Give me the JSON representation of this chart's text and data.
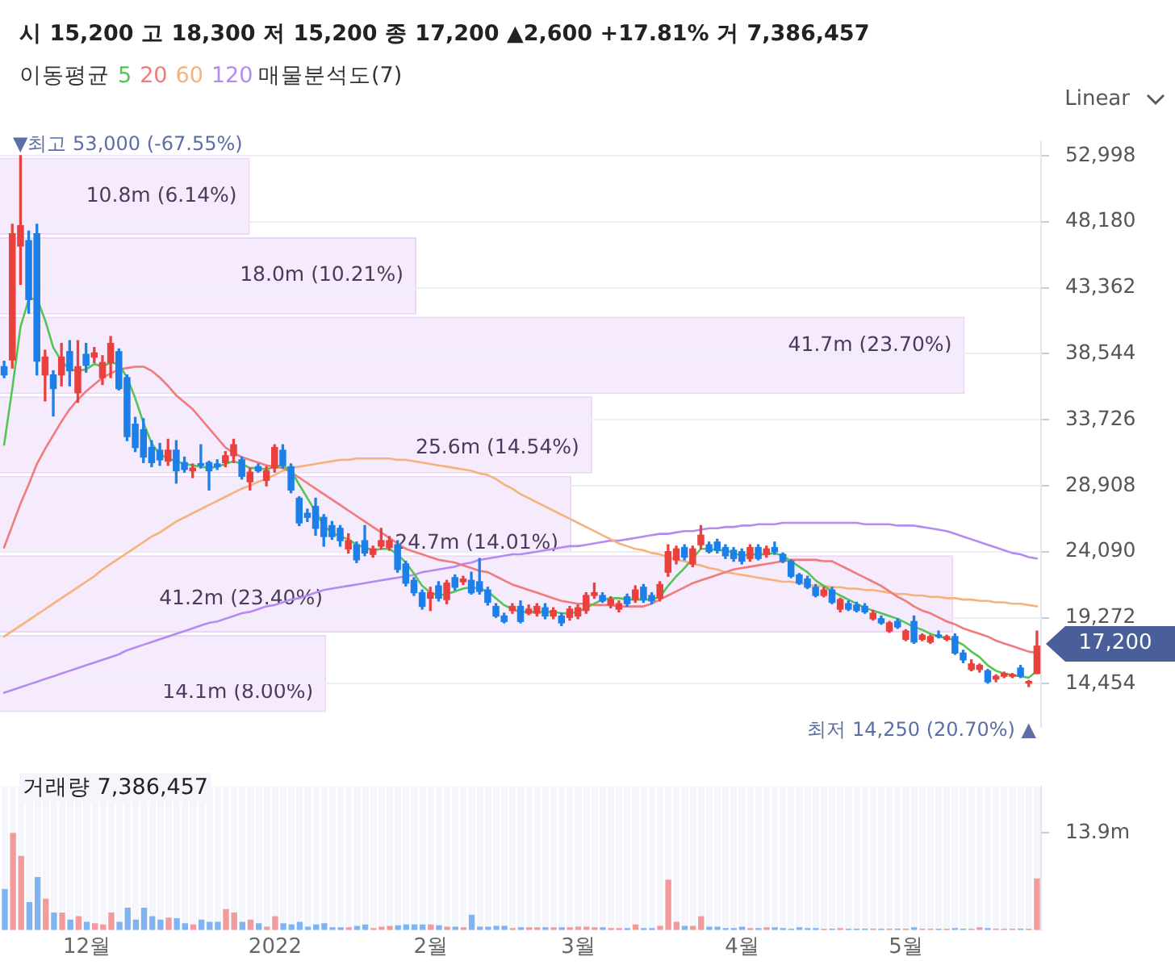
{
  "chart_data": [
    {
      "type": "bar",
      "orientation": "horizontal",
      "title": "매물분석도(7)",
      "tick_labels": false,
      "color": "#f6eafd",
      "categories": [
        null,
        null,
        null,
        null,
        null,
        null,
        null
      ],
      "values": [
        10800000,
        18000000,
        41700000,
        25600000,
        24700000,
        41200000,
        14100000
      ],
      "value_labels": [
        "10.8m (6.14%)",
        "18.0m (10.21%)",
        "41.7m (23.70%)",
        "25.6m (14.54%)",
        "24.7m (14.01%)",
        "41.2m (23.40%)",
        "14.1m (8.00%)"
      ]
    },
    {
      "type": "candlestick",
      "title": "시 15,200 고 18,300 저 15,200 종 17,200 ▲2,600 +17.81% 거 7,386,457",
      "legend": "top left",
      "legend_title": "이동평균",
      "grid": "y",
      "tick_labels": "y",
      "marker": "none",
      "categories": [
        null,
        null,
        null,
        null,
        null,
        null,
        null,
        null,
        null,
        null,
        null,
        null,
        null,
        null,
        null,
        null,
        null,
        null,
        null,
        null,
        null,
        null,
        null,
        null,
        null,
        null,
        null,
        null,
        null,
        null,
        null,
        null,
        null,
        null,
        null,
        null,
        null,
        null,
        null,
        null,
        null,
        null,
        null,
        null,
        null,
        null,
        null,
        null,
        null,
        null,
        null,
        null,
        null,
        null,
        null,
        null,
        null,
        null,
        null,
        null,
        null,
        null,
        null,
        null,
        null,
        null,
        null,
        null,
        null,
        null,
        null,
        null,
        null,
        null,
        null,
        null,
        null,
        null,
        null,
        null,
        null,
        null,
        null,
        null,
        null,
        null,
        null,
        null,
        null,
        null,
        null,
        null,
        null,
        null,
        null,
        null,
        null,
        null,
        null,
        null,
        null,
        null,
        null,
        null,
        null,
        null,
        null,
        null,
        null,
        null,
        null,
        null,
        null,
        null,
        null,
        null,
        null,
        null,
        null,
        null,
        null,
        null,
        null,
        null,
        null,
        null,
        null
      ],
      "ohlc": [
        [
          37600,
          38000,
          36800,
          37000
        ],
        [
          38100,
          48000,
          37500,
          47300
        ],
        [
          46400,
          53000,
          43600,
          47900
        ],
        [
          46800,
          47500,
          41500,
          42500
        ],
        [
          47300,
          48000,
          37000,
          38000
        ],
        [
          37000,
          38800,
          35100,
          38300
        ],
        [
          37000,
          37300,
          34000,
          36000
        ],
        [
          37000,
          39300,
          36200,
          38300
        ],
        [
          38700,
          39500,
          36200,
          37300
        ],
        [
          35700,
          39500,
          35000,
          37600
        ],
        [
          38500,
          39300,
          37200,
          37700
        ],
        [
          38300,
          39000,
          37900,
          38600
        ],
        [
          36800,
          38400,
          36300,
          37900
        ],
        [
          37900,
          39800,
          36800,
          39300
        ],
        [
          38700,
          38900,
          35900,
          36000
        ],
        [
          36800,
          37000,
          32200,
          32500
        ],
        [
          33400,
          33900,
          31400,
          31700
        ],
        [
          33000,
          33800,
          30600,
          31000
        ],
        [
          31700,
          32200,
          30300,
          30600
        ],
        [
          31500,
          32000,
          30400,
          30800
        ],
        [
          30700,
          32300,
          30400,
          31500
        ],
        [
          31500,
          32200,
          29100,
          30000
        ],
        [
          30600,
          31000,
          29900,
          30100
        ],
        [
          30000,
          30500,
          29500,
          30200
        ],
        [
          30500,
          31900,
          30200,
          30400
        ],
        [
          30600,
          30700,
          28600,
          30000
        ],
        [
          30500,
          30800,
          30100,
          30300
        ],
        [
          30600,
          31400,
          30300,
          31100
        ],
        [
          31100,
          32300,
          30600,
          31900
        ],
        [
          30800,
          31000,
          29400,
          29600
        ],
        [
          29200,
          30200,
          28600,
          29900
        ],
        [
          30300,
          30500,
          29900,
          30000
        ],
        [
          29300,
          30300,
          28900,
          30000
        ],
        [
          30200,
          31900,
          29900,
          31700
        ],
        [
          31500,
          31900,
          30200,
          30400
        ],
        [
          30300,
          30500,
          28400,
          28600
        ],
        [
          28000,
          28100,
          26000,
          26200
        ],
        [
          26900,
          27200,
          26300,
          26600
        ],
        [
          27400,
          28000,
          25300,
          25800
        ],
        [
          26600,
          26800,
          24500,
          25200
        ],
        [
          26000,
          26300,
          25000,
          25200
        ],
        [
          25800,
          26000,
          24500,
          24900
        ],
        [
          24300,
          25400,
          24000,
          24900
        ],
        [
          24600,
          24800,
          23300,
          23500
        ],
        [
          24900,
          26000,
          23800,
          24000
        ],
        [
          23900,
          24500,
          23700,
          24300
        ],
        [
          24500,
          25800,
          24300,
          24900
        ],
        [
          24400,
          25200,
          24200,
          24900
        ],
        [
          24600,
          24900,
          22600,
          22800
        ],
        [
          23200,
          23400,
          21600,
          21800
        ],
        [
          22000,
          22200,
          20900,
          21100
        ],
        [
          21100,
          21300,
          19900,
          20100
        ],
        [
          20700,
          21500,
          19800,
          21100
        ],
        [
          21600,
          21900,
          20500,
          20700
        ],
        [
          20600,
          22000,
          20300,
          21800
        ],
        [
          22200,
          22400,
          21300,
          21500
        ],
        [
          21900,
          22300,
          21700,
          22100
        ],
        [
          22000,
          22600,
          21000,
          21100
        ],
        [
          21900,
          23600,
          21000,
          21200
        ],
        [
          21300,
          21500,
          20200,
          20400
        ],
        [
          20100,
          20300,
          19300,
          19400
        ],
        [
          19400,
          19600,
          18900,
          19000
        ],
        [
          19800,
          20300,
          19600,
          20100
        ],
        [
          20100,
          20500,
          18900,
          19000
        ],
        [
          19600,
          20200,
          19500,
          19900
        ],
        [
          19600,
          20300,
          19400,
          20100
        ],
        [
          20000,
          20300,
          19200,
          19400
        ],
        [
          19400,
          20000,
          19200,
          19800
        ],
        [
          19400,
          19600,
          18700,
          18900
        ],
        [
          19300,
          20100,
          19100,
          19900
        ],
        [
          19400,
          20200,
          19200,
          20000
        ],
        [
          19800,
          21100,
          19600,
          20900
        ],
        [
          20900,
          21800,
          20700,
          21100
        ],
        [
          20900,
          21100,
          20400,
          20500
        ],
        [
          20200,
          20800,
          20000,
          20600
        ],
        [
          19900,
          20500,
          19700,
          20300
        ],
        [
          20800,
          21000,
          20100,
          20300
        ],
        [
          20600,
          21600,
          20400,
          21300
        ],
        [
          21500,
          21700,
          20400,
          20600
        ],
        [
          20900,
          21100,
          20300,
          20500
        ],
        [
          20700,
          21900,
          20500,
          21700
        ],
        [
          22600,
          24600,
          22300,
          24100
        ],
        [
          23500,
          24500,
          23200,
          24300
        ],
        [
          24400,
          24600,
          23500,
          23700
        ],
        [
          23200,
          24500,
          23000,
          24300
        ],
        [
          24600,
          26000,
          24300,
          25300
        ],
        [
          24600,
          24800,
          24000,
          24100
        ],
        [
          24800,
          25000,
          24000,
          24200
        ],
        [
          24400,
          24600,
          23600,
          23800
        ],
        [
          24200,
          24400,
          23400,
          23600
        ],
        [
          24100,
          24300,
          23200,
          23400
        ],
        [
          23600,
          24600,
          23400,
          24400
        ],
        [
          24400,
          24600,
          23500,
          23600
        ],
        [
          23900,
          24500,
          23700,
          24300
        ],
        [
          24400,
          24800,
          23900,
          24100
        ],
        [
          23900,
          24000,
          23300,
          23400
        ],
        [
          23400,
          23500,
          22200,
          22300
        ],
        [
          22400,
          22500,
          21700,
          21800
        ],
        [
          22100,
          22300,
          21400,
          21500
        ],
        [
          21500,
          21700,
          20800,
          20900
        ],
        [
          20900,
          21500,
          20800,
          21300
        ],
        [
          21300,
          21500,
          20300,
          20400
        ],
        [
          19900,
          20700,
          19700,
          20600
        ],
        [
          20300,
          20500,
          19800,
          19900
        ],
        [
          20200,
          20400,
          19700,
          19800
        ],
        [
          20100,
          20300,
          19600,
          19700
        ],
        [
          19200,
          19800,
          19100,
          19600
        ],
        [
          19200,
          19400,
          18800,
          18900
        ],
        [
          18300,
          19000,
          18200,
          18900
        ],
        [
          19000,
          19200,
          18500,
          18600
        ],
        [
          17700,
          18400,
          17600,
          18300
        ],
        [
          19000,
          19400,
          17400,
          17500
        ],
        [
          17700,
          18100,
          17600,
          18000
        ],
        [
          17500,
          18000,
          17400,
          17900
        ],
        [
          18000,
          18300,
          17800,
          17900
        ],
        [
          17700,
          18000,
          17600,
          17900
        ],
        [
          17900,
          18100,
          16600,
          16700
        ],
        [
          16700,
          16900,
          16000,
          16200
        ],
        [
          15500,
          16200,
          15400,
          15900
        ],
        [
          15500,
          15900,
          15300,
          15800
        ],
        [
          15400,
          15500,
          14500,
          14600
        ],
        [
          14800,
          15100,
          14600,
          15000
        ],
        [
          15000,
          15300,
          14900,
          15200
        ],
        [
          15000,
          15200,
          14900,
          15100
        ],
        [
          15600,
          15800,
          14900,
          15000
        ],
        [
          14500,
          14700,
          14250,
          14600
        ],
        [
          15200,
          18300,
          15200,
          17200
        ]
      ],
      "colors": [
        "#1d7fe8",
        "#e8413e",
        "#e8413e",
        "#1d7fe8",
        "#1d7fe8",
        "#e8413e",
        "#1d7fe8",
        "#e8413e",
        "#1d7fe8",
        "#e8413e",
        "#1d7fe8",
        "#e8413e",
        "#e8413e",
        "#e8413e",
        "#1d7fe8",
        "#1d7fe8",
        "#1d7fe8",
        "#1d7fe8",
        "#1d7fe8",
        "#1d7fe8",
        "#e8413e",
        "#1d7fe8",
        "#1d7fe8",
        "#e8413e",
        "#1d7fe8",
        "#1d7fe8",
        "#1d7fe8",
        "#e8413e",
        "#e8413e",
        "#1d7fe8",
        "#e8413e",
        "#1d7fe8",
        "#e8413e",
        "#e8413e",
        "#1d7fe8",
        "#1d7fe8",
        "#1d7fe8",
        "#1d7fe8",
        "#1d7fe8",
        "#1d7fe8",
        "#1d7fe8",
        "#1d7fe8",
        "#e8413e",
        "#1d7fe8",
        "#1d7fe8",
        "#e8413e",
        "#e8413e",
        "#e8413e",
        "#1d7fe8",
        "#1d7fe8",
        "#1d7fe8",
        "#1d7fe8",
        "#e8413e",
        "#1d7fe8",
        "#e8413e",
        "#1d7fe8",
        "#e8413e",
        "#1d7fe8",
        "#1d7fe8",
        "#1d7fe8",
        "#1d7fe8",
        "#1d7fe8",
        "#e8413e",
        "#1d7fe8",
        "#e8413e",
        "#e8413e",
        "#1d7fe8",
        "#e8413e",
        "#1d7fe8",
        "#e8413e",
        "#e8413e",
        "#e8413e",
        "#e8413e",
        "#1d7fe8",
        "#e8413e",
        "#e8413e",
        "#1d7fe8",
        "#e8413e",
        "#1d7fe8",
        "#1d7fe8",
        "#e8413e",
        "#e8413e",
        "#e8413e",
        "#1d7fe8",
        "#e8413e",
        "#e8413e",
        "#1d7fe8",
        "#1d7fe8",
        "#1d7fe8",
        "#1d7fe8",
        "#1d7fe8",
        "#e8413e",
        "#1d7fe8",
        "#e8413e",
        "#1d7fe8",
        "#1d7fe8",
        "#1d7fe8",
        "#1d7fe8",
        "#1d7fe8",
        "#1d7fe8",
        "#e8413e",
        "#1d7fe8",
        "#e8413e",
        "#1d7fe8",
        "#1d7fe8",
        "#1d7fe8",
        "#e8413e",
        "#1d7fe8",
        "#e8413e",
        "#1d7fe8",
        "#e8413e",
        "#1d7fe8",
        "#e8413e",
        "#e8413e",
        "#1d7fe8",
        "#e8413e",
        "#1d7fe8",
        "#1d7fe8",
        "#e8413e",
        "#e8413e",
        "#1d7fe8",
        "#e8413e",
        "#e8413e",
        "#e8413e",
        "#1d7fe8",
        "#e8413e",
        "#e8413e"
      ],
      "series": [
        {
          "type": "line",
          "name": "5",
          "color": "#55c455",
          "values": [
            31900,
            36000,
            40500,
            42500,
            42600,
            41000,
            39000,
            38000,
            37400,
            37300,
            37400,
            37800,
            37600,
            37900,
            37800,
            36800,
            35300,
            33500,
            32000,
            31200,
            30900,
            30700,
            30500,
            30400,
            30300,
            30200,
            30300,
            30500,
            30700,
            30500,
            30200,
            30200,
            30100,
            30300,
            30400,
            30000,
            29000,
            28000,
            27000,
            26000,
            25500,
            25200,
            25000,
            24600,
            24400,
            24200,
            24300,
            24300,
            23900,
            23300,
            22500,
            21600,
            21100,
            20900,
            21000,
            21200,
            21400,
            21500,
            21400,
            21200,
            20700,
            20200,
            19900,
            19700,
            19700,
            19700,
            19700,
            19700,
            19600,
            19600,
            19700,
            20000,
            20300,
            20600,
            20700,
            20700,
            20600,
            20600,
            20600,
            20600,
            20800,
            21600,
            22300,
            22900,
            23600,
            24300,
            24300,
            24200,
            24200,
            24000,
            23800,
            23900,
            23900,
            23900,
            24000,
            23800,
            23400,
            23000,
            22600,
            22000,
            21600,
            21200,
            20900,
            20600,
            20300,
            20000,
            19800,
            19600,
            19400,
            19200,
            18900,
            18600,
            18400,
            18100,
            17900,
            17800,
            17600,
            17300,
            16800,
            16400,
            15800,
            15400,
            15200,
            15100,
            15000,
            14900,
            15400
          ]
        },
        {
          "type": "line",
          "name": "20",
          "color": "#f07b7b",
          "values": [
            24400,
            26000,
            27600,
            29000,
            30500,
            31600,
            32600,
            33600,
            34500,
            35200,
            35800,
            36300,
            36800,
            37100,
            37400,
            37500,
            37600,
            37600,
            37300,
            36800,
            36200,
            35500,
            35000,
            34500,
            33800,
            33100,
            32400,
            31700,
            31300,
            31000,
            30800,
            30600,
            30400,
            30300,
            30200,
            29900,
            29500,
            29100,
            28700,
            28300,
            27900,
            27500,
            27100,
            26700,
            26300,
            25900,
            25500,
            25100,
            24700,
            24300,
            24100,
            23900,
            23700,
            23500,
            23400,
            23300,
            23100,
            22900,
            22700,
            22600,
            22300,
            22000,
            21700,
            21500,
            21300,
            21100,
            20900,
            20700,
            20500,
            20400,
            20300,
            20300,
            20200,
            20200,
            20200,
            20100,
            20100,
            20100,
            20100,
            20300,
            20600,
            20900,
            21200,
            21500,
            21800,
            22000,
            22200,
            22400,
            22600,
            22800,
            22900,
            23000,
            23100,
            23200,
            23300,
            23400,
            23500,
            23500,
            23500,
            23500,
            23400,
            23400,
            23100,
            22800,
            22500,
            22200,
            21900,
            21600,
            21200,
            20800,
            20500,
            20100,
            19800,
            19600,
            19300,
            19000,
            18800,
            18500,
            18300,
            18100,
            17900,
            17600,
            17400,
            17200,
            17000,
            16800,
            16700
          ]
        },
        {
          "type": "line",
          "name": "60",
          "color": "#f5b27a",
          "values": [
            17900,
            18300,
            18700,
            19100,
            19500,
            19900,
            20300,
            20700,
            21100,
            21500,
            21900,
            22300,
            22800,
            23200,
            23600,
            24000,
            24400,
            24800,
            25200,
            25500,
            25900,
            26300,
            26600,
            26900,
            27200,
            27500,
            27800,
            28100,
            28400,
            28700,
            28900,
            29200,
            29400,
            29700,
            30000,
            30200,
            30300,
            30400,
            30500,
            30600,
            30700,
            30800,
            30800,
            30900,
            30900,
            30900,
            30900,
            30900,
            30800,
            30800,
            30700,
            30600,
            30500,
            30400,
            30300,
            30200,
            30100,
            30000,
            29800,
            29700,
            29400,
            29000,
            28700,
            28300,
            28000,
            27700,
            27400,
            27100,
            26800,
            26500,
            26200,
            25900,
            25600,
            25300,
            25000,
            24700,
            24500,
            24300,
            24200,
            24000,
            23900,
            23700,
            23500,
            23400,
            23200,
            23100,
            22900,
            22800,
            22600,
            22500,
            22400,
            22300,
            22200,
            22100,
            22000,
            21900,
            21900,
            21800,
            21700,
            21600,
            21600,
            21500,
            21500,
            21400,
            21400,
            21300,
            21300,
            21200,
            21100,
            21000,
            21000,
            20900,
            20900,
            20800,
            20800,
            20700,
            20700,
            20600,
            20600,
            20500,
            20500,
            20400,
            20400,
            20300,
            20300,
            20200,
            20100
          ]
        },
        {
          "type": "line",
          "name": "120",
          "color": "#b48cf0",
          "values": [
            13800,
            14000,
            14200,
            14400,
            14600,
            14800,
            15000,
            15200,
            15400,
            15600,
            15800,
            16000,
            16200,
            16400,
            16600,
            16900,
            17100,
            17300,
            17500,
            17700,
            17900,
            18100,
            18300,
            18500,
            18700,
            18900,
            19000,
            19200,
            19400,
            19600,
            19700,
            19900,
            20100,
            20200,
            20400,
            20600,
            20700,
            20900,
            21100,
            21300,
            21400,
            21500,
            21600,
            21700,
            21800,
            21900,
            22000,
            22100,
            22200,
            22300,
            22400,
            22600,
            22700,
            22800,
            22900,
            23000,
            23200,
            23300,
            23500,
            23600,
            23700,
            23800,
            23900,
            23900,
            24000,
            24100,
            24200,
            24300,
            24400,
            24500,
            24500,
            24600,
            24700,
            24800,
            24900,
            24900,
            25000,
            25100,
            25200,
            25300,
            25400,
            25400,
            25500,
            25600,
            25600,
            25700,
            25800,
            25800,
            25900,
            25900,
            26000,
            26000,
            26100,
            26100,
            26100,
            26200,
            26200,
            26200,
            26200,
            26200,
            26200,
            26200,
            26200,
            26200,
            26200,
            26100,
            26100,
            26100,
            26100,
            26000,
            26000,
            26000,
            25900,
            25800,
            25700,
            25600,
            25400,
            25200,
            25000,
            24800,
            24600,
            24400,
            24200,
            24000,
            23900,
            23700,
            23600
          ]
        }
      ],
      "ylim": [
        11300,
        54000
      ],
      "yticks": [
        {
          "value": 14454,
          "label": "14,454"
        },
        {
          "value": 19272,
          "label": "19,272"
        },
        {
          "value": 24090,
          "label": "24,090"
        },
        {
          "value": 28908,
          "label": "28,908"
        },
        {
          "value": 33726,
          "label": "33,726"
        },
        {
          "value": 38544,
          "label": "38,544"
        },
        {
          "value": 43362,
          "label": "43,362"
        },
        {
          "value": 48180,
          "label": "48,180"
        },
        {
          "value": 52998,
          "label": "52,998"
        }
      ],
      "annotations": [
        "Linear",
        "▼최고 53,000 (-67.55%)",
        "최저 14,250 (20.70%) ▲",
        "17,200"
      ]
    },
    {
      "type": "bar",
      "title": "거래량 7,386,457",
      "grid": "x",
      "categories": [
        null,
        null,
        null,
        null,
        null,
        null,
        null,
        null,
        null,
        null,
        "12월",
        null,
        null,
        null,
        null,
        null,
        null,
        null,
        null,
        null,
        null,
        null,
        null,
        null,
        null,
        null,
        null,
        null,
        null,
        null,
        null,
        null,
        null,
        "2022",
        null,
        null,
        null,
        null,
        null,
        null,
        null,
        null,
        null,
        null,
        null,
        null,
        null,
        null,
        null,
        null,
        null,
        null,
        "2월",
        null,
        null,
        null,
        null,
        null,
        null,
        null,
        null,
        null,
        null,
        null,
        null,
        null,
        null,
        null,
        null,
        null,
        "3월",
        null,
        null,
        null,
        null,
        null,
        null,
        null,
        null,
        null,
        null,
        null,
        null,
        null,
        null,
        null,
        null,
        null,
        null,
        null,
        "4월",
        null,
        null,
        null,
        null,
        null,
        null,
        null,
        null,
        null,
        null,
        null,
        null,
        null,
        null,
        null,
        null,
        null,
        null,
        null,
        "5월",
        null,
        null,
        null,
        null,
        null,
        null,
        null,
        null,
        null,
        null,
        null,
        null,
        null,
        null,
        null,
        null
      ],
      "values": [
        5900000,
        13900000,
        10600000,
        4000000,
        7600000,
        4500000,
        2500000,
        2500000,
        1500000,
        2000000,
        1200000,
        1000000,
        800000,
        2500000,
        1200000,
        3200000,
        1500000,
        3200000,
        2000000,
        1500000,
        1800000,
        1700000,
        1000000,
        800000,
        1500000,
        1200000,
        1200000,
        3000000,
        2500000,
        1200000,
        1500000,
        1000000,
        500000,
        2000000,
        1000000,
        800000,
        1200000,
        500000,
        800000,
        1000000,
        400000,
        400000,
        400000,
        600000,
        800000,
        300000,
        500000,
        600000,
        700000,
        800000,
        800000,
        800000,
        800000,
        700000,
        500000,
        500000,
        400000,
        2200000,
        500000,
        500000,
        600000,
        600000,
        300000,
        400000,
        400000,
        400000,
        400000,
        400000,
        400000,
        400000,
        500000,
        500000,
        400000,
        400000,
        300000,
        300000,
        300000,
        800000,
        300000,
        300000,
        600000,
        7200000,
        1200000,
        600000,
        600000,
        2000000,
        500000,
        500000,
        300000,
        300000,
        500000,
        300000,
        300000,
        400000,
        400000,
        300000,
        200000,
        400000,
        300000,
        300000,
        200000,
        200000,
        300000,
        200000,
        200000,
        200000,
        200000,
        200000,
        200000,
        200000,
        200000,
        400000,
        200000,
        200000,
        200000,
        200000,
        300000,
        200000,
        200000,
        400000,
        300000,
        200000,
        200000,
        200000,
        200000,
        200000,
        7386457
      ],
      "colors": [
        "#7fb3f2",
        "#f39a9c",
        "#f39a9c",
        "#7fb3f2",
        "#7fb3f2",
        "#f39a9c",
        "#7fb3f2",
        "#f39a9c",
        "#7fb3f2",
        "#f39a9c",
        "#7fb3f2",
        "#f39a9c",
        "#f39a9c",
        "#f39a9c",
        "#7fb3f2",
        "#7fb3f2",
        "#7fb3f2",
        "#7fb3f2",
        "#7fb3f2",
        "#7fb3f2",
        "#f39a9c",
        "#7fb3f2",
        "#7fb3f2",
        "#f39a9c",
        "#7fb3f2",
        "#7fb3f2",
        "#7fb3f2",
        "#f39a9c",
        "#f39a9c",
        "#7fb3f2",
        "#f39a9c",
        "#7fb3f2",
        "#f39a9c",
        "#f39a9c",
        "#7fb3f2",
        "#7fb3f2",
        "#7fb3f2",
        "#7fb3f2",
        "#7fb3f2",
        "#7fb3f2",
        "#7fb3f2",
        "#7fb3f2",
        "#f39a9c",
        "#7fb3f2",
        "#7fb3f2",
        "#f39a9c",
        "#f39a9c",
        "#f39a9c",
        "#7fb3f2",
        "#7fb3f2",
        "#7fb3f2",
        "#7fb3f2",
        "#f39a9c",
        "#7fb3f2",
        "#f39a9c",
        "#7fb3f2",
        "#f39a9c",
        "#7fb3f2",
        "#7fb3f2",
        "#7fb3f2",
        "#7fb3f2",
        "#7fb3f2",
        "#f39a9c",
        "#7fb3f2",
        "#f39a9c",
        "#f39a9c",
        "#7fb3f2",
        "#f39a9c",
        "#7fb3f2",
        "#f39a9c",
        "#f39a9c",
        "#f39a9c",
        "#f39a9c",
        "#7fb3f2",
        "#f39a9c",
        "#f39a9c",
        "#7fb3f2",
        "#f39a9c",
        "#7fb3f2",
        "#7fb3f2",
        "#f39a9c",
        "#f39a9c",
        "#f39a9c",
        "#7fb3f2",
        "#f39a9c",
        "#f39a9c",
        "#7fb3f2",
        "#7fb3f2",
        "#7fb3f2",
        "#7fb3f2",
        "#7fb3f2",
        "#f39a9c",
        "#7fb3f2",
        "#f39a9c",
        "#7fb3f2",
        "#7fb3f2",
        "#7fb3f2",
        "#7fb3f2",
        "#7fb3f2",
        "#7fb3f2",
        "#f39a9c",
        "#7fb3f2",
        "#f39a9c",
        "#7fb3f2",
        "#7fb3f2",
        "#7fb3f2",
        "#f39a9c",
        "#7fb3f2",
        "#f39a9c",
        "#7fb3f2",
        "#f39a9c",
        "#7fb3f2",
        "#f39a9c",
        "#f39a9c",
        "#7fb3f2",
        "#f39a9c",
        "#7fb3f2",
        "#7fb3f2",
        "#f39a9c",
        "#f39a9c",
        "#7fb3f2",
        "#f39a9c",
        "#f39a9c",
        "#f39a9c",
        "#7fb3f2",
        "#f39a9c",
        "#f39a9c"
      ],
      "ylim": [
        0,
        20500000
      ],
      "yticks": [
        {
          "value": 13900000,
          "label": "13.9m"
        }
      ]
    }
  ]
}
